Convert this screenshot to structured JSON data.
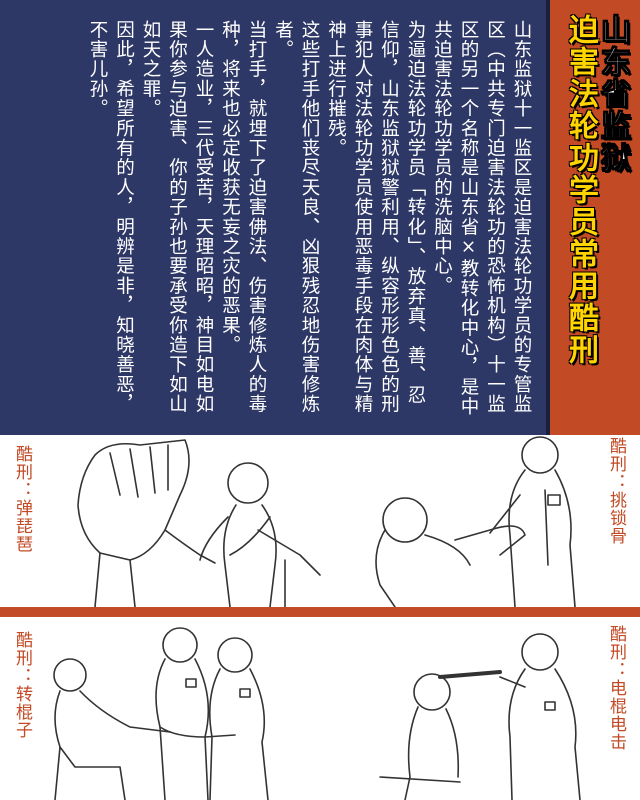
{
  "title": {
    "line1": "山东省监狱",
    "line2": "迫害法轮功学员常用酷刑"
  },
  "body_paragraphs": [
    "山东监狱十一监区是迫害法轮功学员的专管监区（中共专门迫害法轮功的恐怖机构）十一监区的另一个名称是山东省×教转化中心，是中共迫害法轮功学员的洗脑中心。",
    "为逼迫法轮功学员「转化」、放弃真、善、忍信仰，山东监狱狱警利用、纵容形形色色的刑事犯人对法轮功学员使用恶毒手段在肉体与精神上进行摧残。",
    "这些打手他们丧尽天良、凶狠残忍地伤害修炼者。",
    "当打手，就埋下了迫害佛法、伤害修炼人的毒种，将来也必定收获无妄之灾的恶果。",
    "一人造业，三代受苦，天理昭昭，神目如电如果你参与迫害、你的子孙也要承受你造下如山如天之罪。",
    "因此，希望所有的人，明辨是非，知晓善恶，不害儿孙。"
  ],
  "captions": {
    "scene1_left": "酷刑：弹琵琶",
    "scene1_right": "酷刑：挑锁骨",
    "scene2_left": "酷刑：转棍子",
    "scene2_right": "酷刑：电棍电击"
  },
  "colors": {
    "panel_blue": "#2e3866",
    "accent_orange": "#c24a24",
    "title_yellow": "#ffd400"
  }
}
